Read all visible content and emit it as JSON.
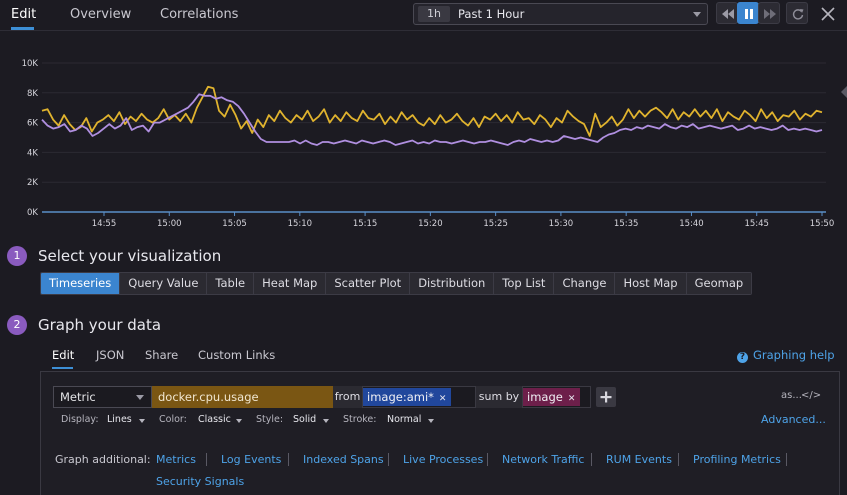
{
  "header": {
    "tabs": [
      {
        "label": "Edit",
        "active": true
      },
      {
        "label": "Overview",
        "active": false
      },
      {
        "label": "Correlations",
        "active": false
      }
    ],
    "time_badge": "1h",
    "time_label": "Past 1 Hour"
  },
  "colors": {
    "accent": "#3b85cf",
    "series_cpu": "#e0b32e",
    "series_other": "#b08fe0",
    "step_circle": "#8a5bbf"
  },
  "chart_data": {
    "type": "line",
    "ylim": [
      0,
      10000
    ],
    "yticks": [
      "0K",
      "2K",
      "4K",
      "6K",
      "8K",
      "10K"
    ],
    "ytick_values": [
      0,
      2000,
      4000,
      6000,
      8000,
      10000
    ],
    "xticks": [
      "14:55",
      "15:00",
      "15:05",
      "15:10",
      "15:15",
      "15:20",
      "15:25",
      "15:30",
      "15:35",
      "15:40",
      "15:45",
      "15:50"
    ],
    "xtick_minutes": [
      5,
      10,
      15,
      20,
      25,
      30,
      35,
      40,
      45,
      50,
      55,
      60
    ],
    "grid": true,
    "series": [
      {
        "color": "#e0b32e",
        "values": [
          6800,
          6900,
          6200,
          5800,
          6500,
          5900,
          5500,
          5700,
          6300,
          5400,
          6000,
          6200,
          6500,
          6100,
          6700,
          5900,
          6400,
          6100,
          6600,
          6200,
          6000,
          6300,
          6900,
          6200,
          6500,
          6100,
          6600,
          6000,
          7000,
          7700,
          8400,
          8300,
          6800,
          6400,
          7200,
          6500,
          5600,
          6100,
          5300,
          6200,
          5700,
          6500,
          6100,
          6800,
          6300,
          6000,
          6500,
          6200,
          6800,
          6100,
          6400,
          6900,
          6000,
          6500,
          6100,
          6700,
          6300,
          6100,
          6800,
          6300,
          6200,
          6600,
          5900,
          6400,
          6000,
          6700,
          6200,
          6500,
          6000,
          5800,
          6300,
          5900,
          6500,
          6000,
          6200,
          6600,
          6100,
          5800,
          6300,
          5700,
          6400,
          6200,
          6600,
          6100,
          6500,
          6000,
          6700,
          6200,
          6300,
          5900,
          6500,
          6200,
          5700,
          6300,
          6000,
          6800,
          6400,
          6100,
          5900,
          5100,
          6600,
          5700,
          6000,
          6400,
          5800,
          6200,
          6900,
          6300,
          6800,
          6400,
          6800,
          7000,
          6700,
          6300,
          6900,
          6200,
          6700,
          6400,
          6900,
          6400,
          6800,
          6300,
          6900,
          6100,
          6700,
          6400,
          6200,
          6800,
          6500,
          6100,
          6900,
          6300,
          6700,
          6100,
          6500,
          6400,
          6800,
          6200,
          6600,
          6400,
          6800,
          6700
        ],
        "xs": "auto"
      },
      {
        "color": "#b08fe0",
        "values": [
          6200,
          5800,
          5600,
          5700,
          5900,
          5400,
          5500,
          5800,
          5600,
          5100,
          5300,
          5600,
          5900,
          5600,
          5800,
          6300,
          5500,
          5700,
          5800,
          5400,
          6000,
          6000,
          6200,
          6400,
          6600,
          6800,
          7000,
          7400,
          7900,
          7800,
          7800,
          7600,
          7700,
          7500,
          7400,
          7100,
          6600,
          6000,
          5400,
          4900,
          4700,
          4700,
          4700,
          4700,
          4700,
          4800,
          4600,
          4800,
          4600,
          4500,
          4700,
          4700,
          4600,
          4700,
          4800,
          4700,
          4600,
          4800,
          4700,
          4600,
          4700,
          4800,
          4700,
          4500,
          4600,
          4700,
          4800,
          4600,
          4700,
          4600,
          4800,
          4700,
          4700,
          4600,
          4700,
          4800,
          4700,
          4600,
          4700,
          4700,
          4800,
          4700,
          4600,
          4500,
          4700,
          4800,
          4700,
          4900,
          4800,
          4700,
          4800,
          4700,
          4800,
          5100,
          5000,
          4900,
          5000,
          4900,
          4800,
          4700,
          5000,
          5200,
          5300,
          5500,
          5600,
          5500,
          5700,
          5600,
          5800,
          5700,
          5600,
          5900,
          5700,
          5600,
          5800,
          5700,
          5900,
          5600,
          5700,
          5800,
          5700,
          5600,
          5700,
          5800,
          5500,
          5600,
          5800,
          5600,
          5700,
          5600,
          5500,
          5600,
          5800,
          5500,
          5600,
          5500,
          5600,
          5500,
          5400,
          5500
        ]
      }
    ]
  },
  "sections": {
    "viz": {
      "step": "1",
      "title": "Select your visualization"
    },
    "graph": {
      "step": "2",
      "title": "Graph your data"
    }
  },
  "viz_types": [
    {
      "label": "Timeseries",
      "active": true
    },
    {
      "label": "Query Value",
      "active": false
    },
    {
      "label": "Table",
      "active": false
    },
    {
      "label": "Heat Map",
      "active": false
    },
    {
      "label": "Scatter Plot",
      "active": false
    },
    {
      "label": "Distribution",
      "active": false
    },
    {
      "label": "Top List",
      "active": false
    },
    {
      "label": "Change",
      "active": false
    },
    {
      "label": "Host Map",
      "active": false
    },
    {
      "label": "Geomap",
      "active": false
    }
  ],
  "editor": {
    "tabs": [
      "Edit",
      "JSON",
      "Share",
      "Custom Links"
    ],
    "help_label": "Graphing help",
    "query": {
      "source": "Metric",
      "metric": "docker.cpu.usage",
      "from_label": "from",
      "scope_tag": "image:ami*",
      "sum_label": "sum by",
      "group_tag": "image",
      "as_label": "as...",
      "code_label": "</>"
    },
    "options": {
      "display_label": "Display:",
      "display_value": "Lines",
      "color_label": "Color:",
      "color_value": "Classic",
      "style_label": "Style:",
      "style_value": "Solid",
      "stroke_label": "Stroke:",
      "stroke_value": "Normal",
      "advanced_label": "Advanced..."
    },
    "additional_label": "Graph additional:",
    "additional_links": [
      "Metrics",
      "Log Events",
      "Indexed Spans",
      "Live Processes",
      "Network Traffic",
      "RUM Events",
      "Profiling Metrics",
      "Security Signals"
    ]
  }
}
